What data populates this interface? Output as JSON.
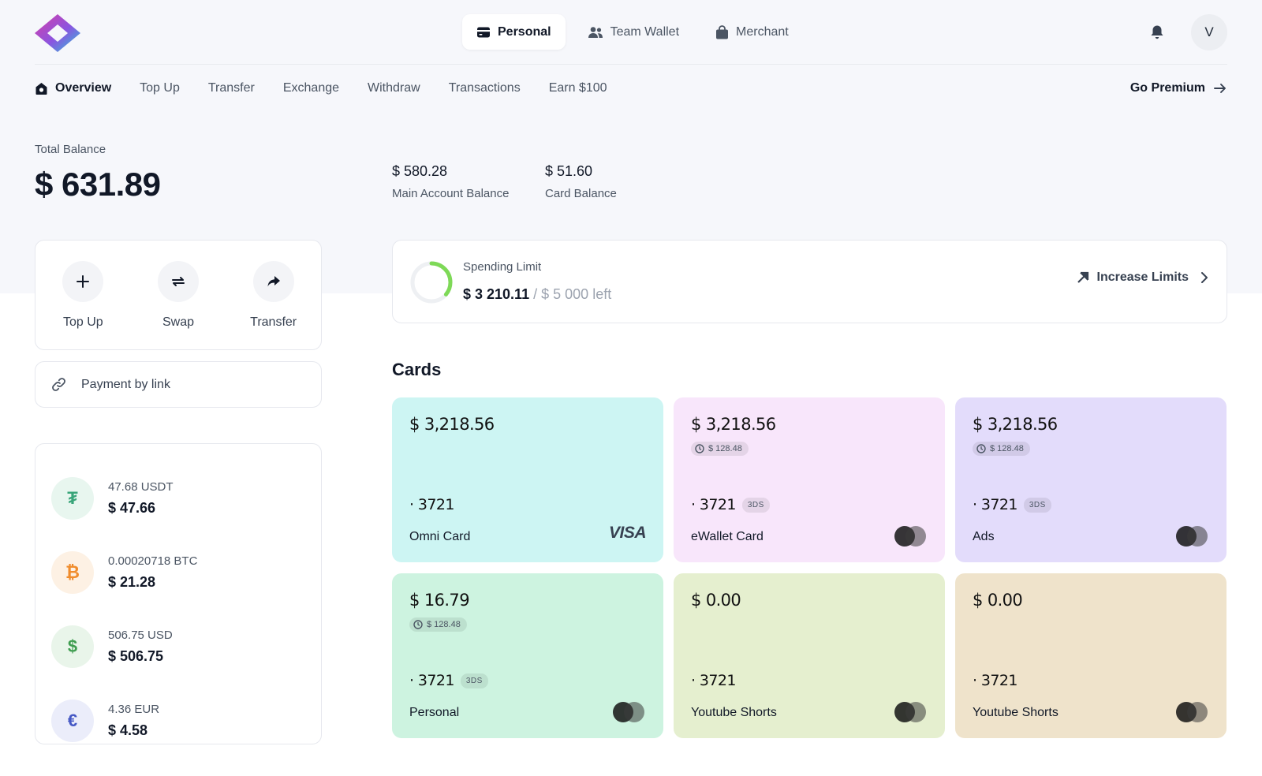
{
  "colors": {
    "accent_ring": "#7ed957",
    "card_omni": "#cdf5f3",
    "card_ewallet": "#f8e6fb",
    "card_ads": "#e3dcfb",
    "card_personal": "#cdf3e0",
    "card_yt1": "#e5efcf",
    "card_yt2": "#efe3cb"
  },
  "header": {
    "logo_icon": "diamond-logo",
    "wallet_tabs": [
      {
        "label": "Personal",
        "icon": "card-icon"
      },
      {
        "label": "Team Wallet",
        "icon": "users-icon"
      },
      {
        "label": "Merchant",
        "icon": "bag-icon"
      }
    ],
    "avatar_initial": "V"
  },
  "nav": {
    "items": [
      "Overview",
      "Top Up",
      "Transfer",
      "Exchange",
      "Withdraw",
      "Transactions",
      "Earn $100"
    ],
    "premium": "Go Premium"
  },
  "balance": {
    "total_label": "Total Balance",
    "total_value": "$ 631.89",
    "main_value": "$ 580.28",
    "main_label": "Main Account Balance",
    "card_value": "$ 51.60",
    "card_label": "Card Balance"
  },
  "quick_actions": [
    "Top Up",
    "Swap",
    "Transfer"
  ],
  "payment_link": "Payment by link",
  "assets": [
    {
      "amount": "47.68 USDT",
      "usd": "$ 47.66",
      "symbol": "₮",
      "color": "#3aa57a",
      "bg": "#e8f6ef"
    },
    {
      "amount": "0.00020718 BTC",
      "usd": "$ 21.28",
      "symbol": "₿",
      "color": "#f08c2c",
      "bg": "#fdf1e4"
    },
    {
      "amount": "506.75 USD",
      "usd": "$ 506.75",
      "symbol": "$",
      "color": "#3f9d50",
      "bg": "#e9f5ea"
    },
    {
      "amount": "4.36 EUR",
      "usd": "$ 4.58",
      "symbol": "€",
      "color": "#4457c4",
      "bg": "#ebedfa"
    }
  ],
  "spending": {
    "label": "Spending Limit",
    "current": "$ 3 210.11",
    "separator": "/",
    "limit": "$ 5 000 left",
    "progress_fraction": 0.36,
    "increase_label": "Increase Limits"
  },
  "cards_title": "Cards",
  "cards": [
    {
      "balance": "$ 3,218.56",
      "pending": "",
      "number": "· 3721",
      "tag": "",
      "name": "Omni Card",
      "brand": "VISA"
    },
    {
      "balance": "$ 3,218.56",
      "pending": "$ 128.48",
      "number": "· 3721",
      "tag": "3DS",
      "name": "eWallet Card",
      "brand": "mastercard"
    },
    {
      "balance": "$ 3,218.56",
      "pending": "$ 128.48",
      "number": "· 3721",
      "tag": "3DS",
      "name": "Ads",
      "brand": "mastercard"
    },
    {
      "balance": "$ 16.79",
      "pending": "$ 128.48",
      "number": "· 3721",
      "tag": "3DS",
      "name": "Personal",
      "brand": "mastercard"
    },
    {
      "balance": "$ 0.00",
      "pending": "",
      "number": "· 3721",
      "tag": "",
      "name": "Youtube Shorts",
      "brand": "mastercard"
    },
    {
      "balance": "$ 0.00",
      "pending": "",
      "number": "· 3721",
      "tag": "",
      "name": "Youtube Shorts",
      "brand": "mastercard"
    }
  ]
}
